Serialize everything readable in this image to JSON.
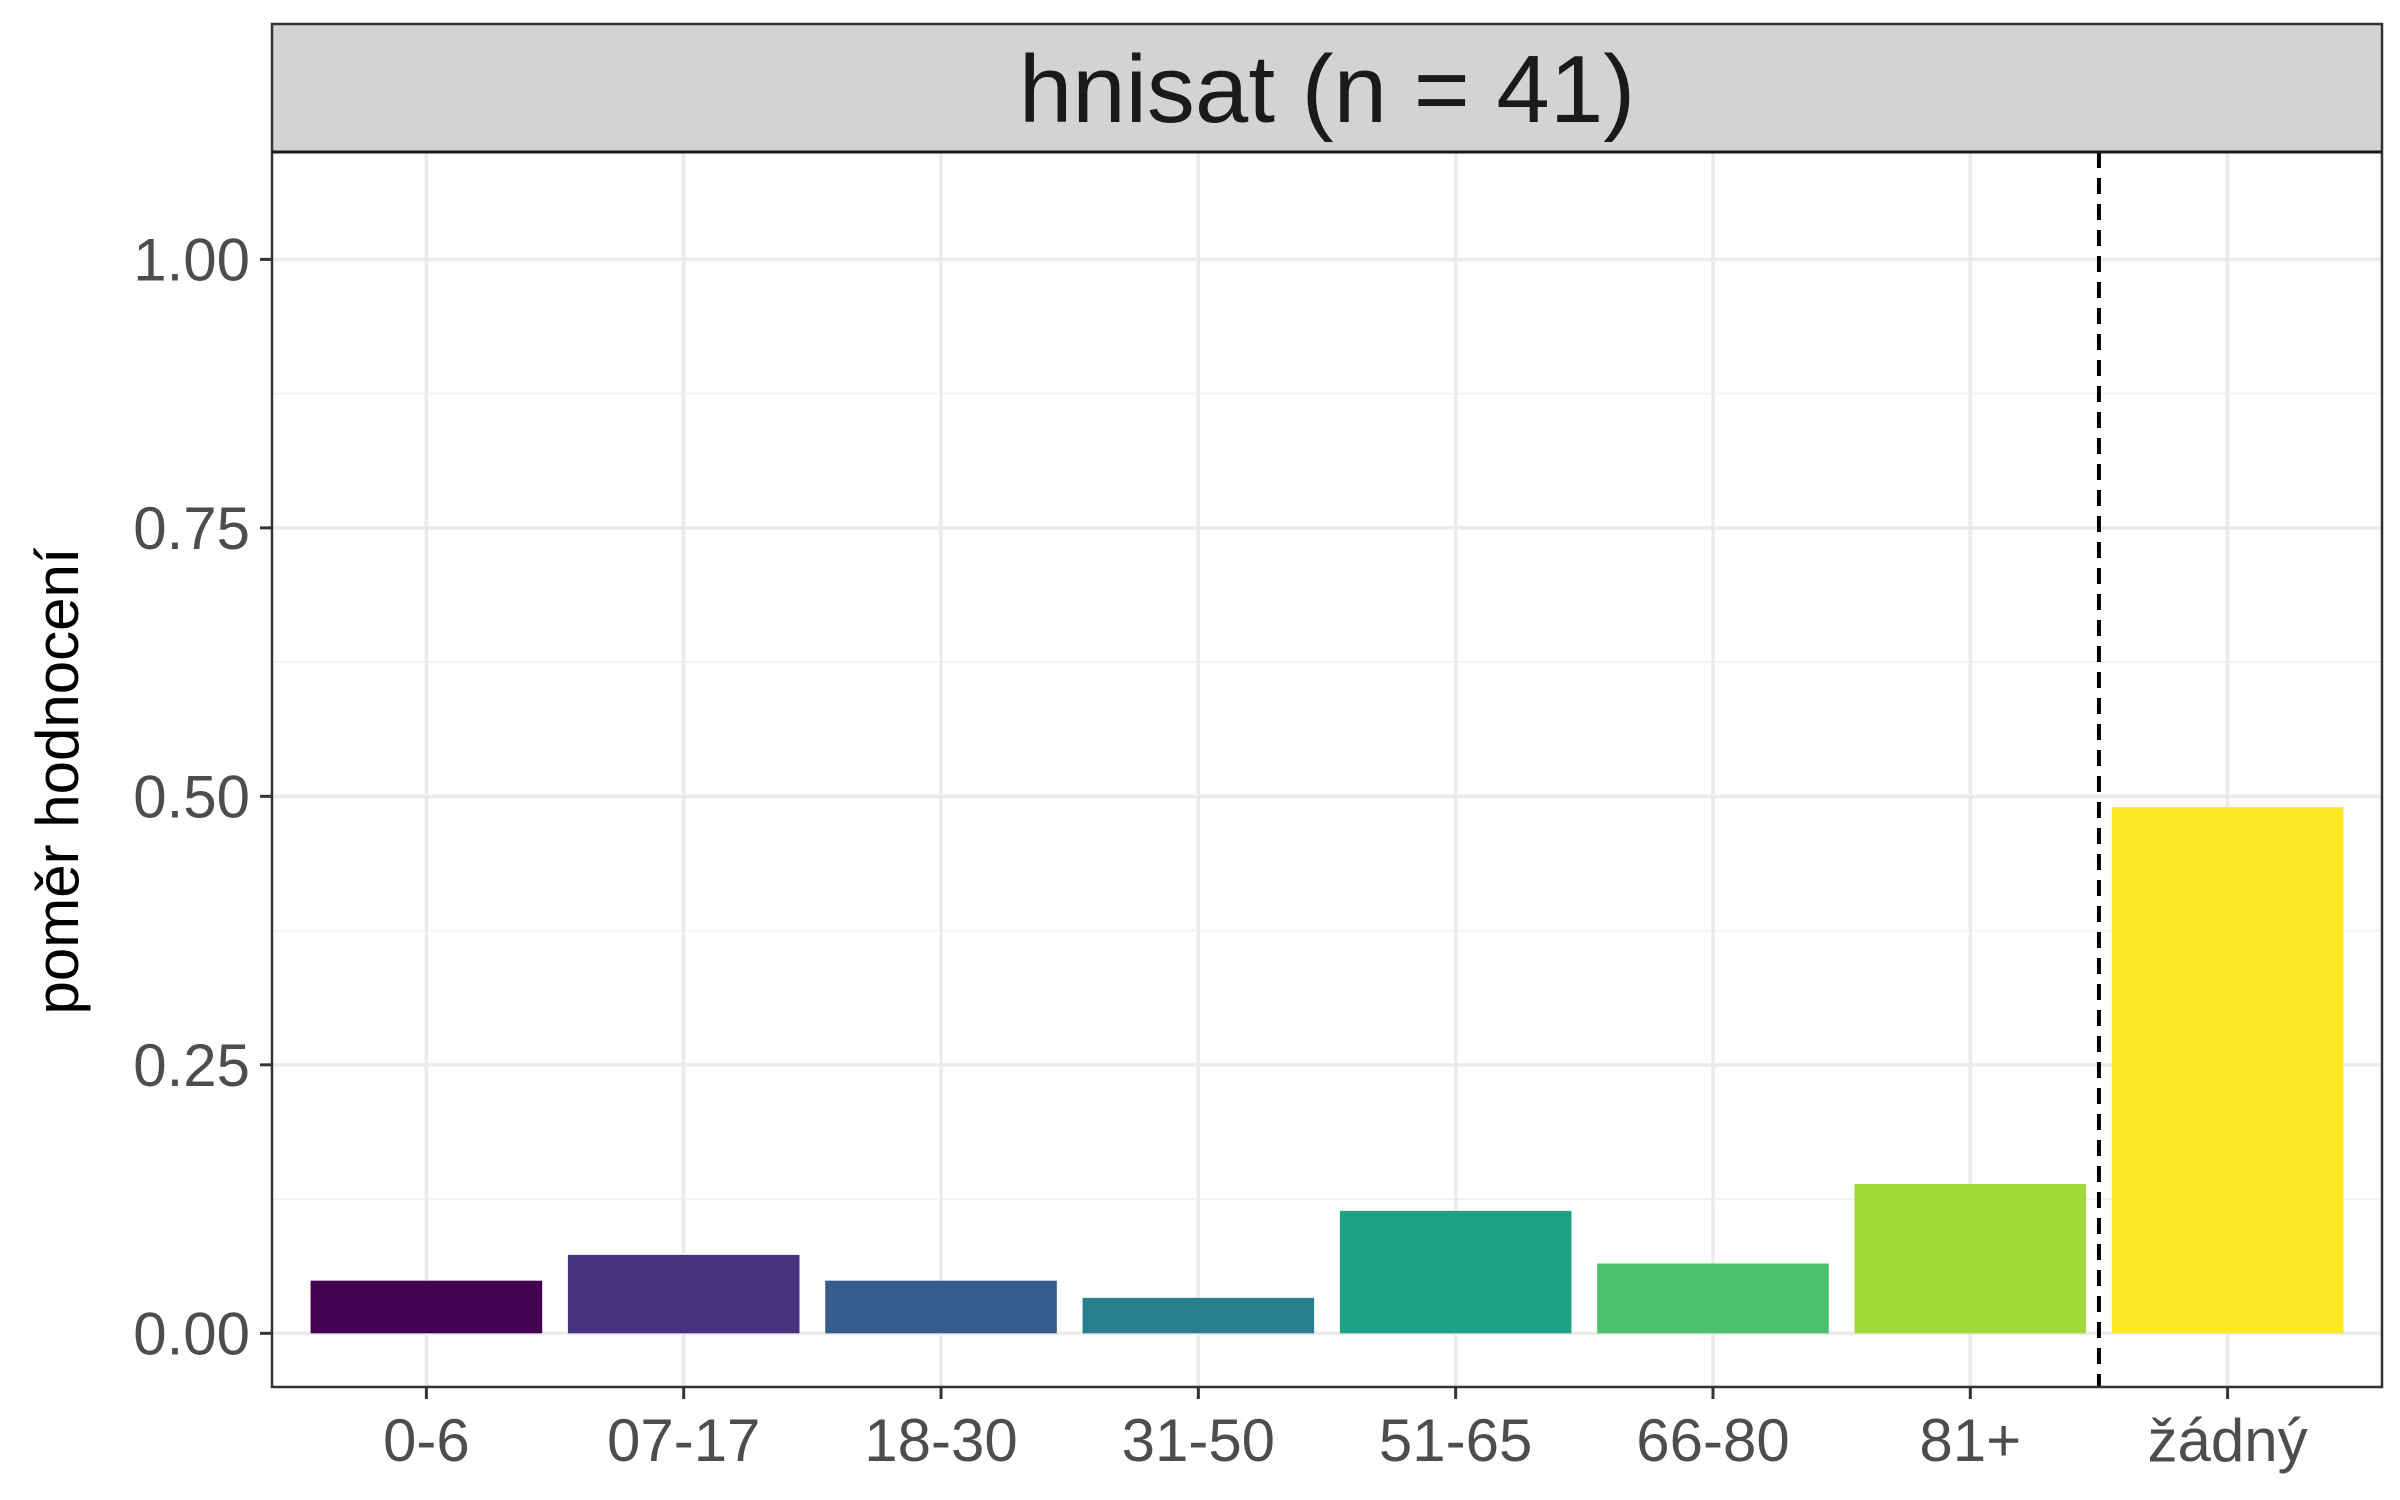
{
  "chart_data": {
    "type": "bar",
    "title": "hnisat (n = 41)",
    "ylabel": "poměr hodnocení",
    "xlabel": "",
    "categories": [
      "0-6",
      "07-17",
      "18-30",
      "31-50",
      "51-65",
      "66-80",
      "81+",
      "žádný"
    ],
    "values": [
      0.049,
      0.073,
      0.049,
      0.033,
      0.114,
      0.065,
      0.139,
      0.49
    ],
    "colors": [
      "#440154",
      "#46337E",
      "#365C8D",
      "#277F8E",
      "#1FA187",
      "#4AC16D",
      "#9FDA3A",
      "#FDE725"
    ],
    "ylim": [
      -0.05,
      1.1
    ],
    "yticks": [
      0.0,
      0.25,
      0.5,
      0.75,
      1.0
    ],
    "ytick_labels": [
      "0.00",
      "0.25",
      "0.50",
      "0.75",
      "1.00"
    ],
    "reference_line": {
      "after_category": "81+",
      "style": "dashed",
      "color": "#000000"
    },
    "grid": true,
    "legend": "none"
  }
}
